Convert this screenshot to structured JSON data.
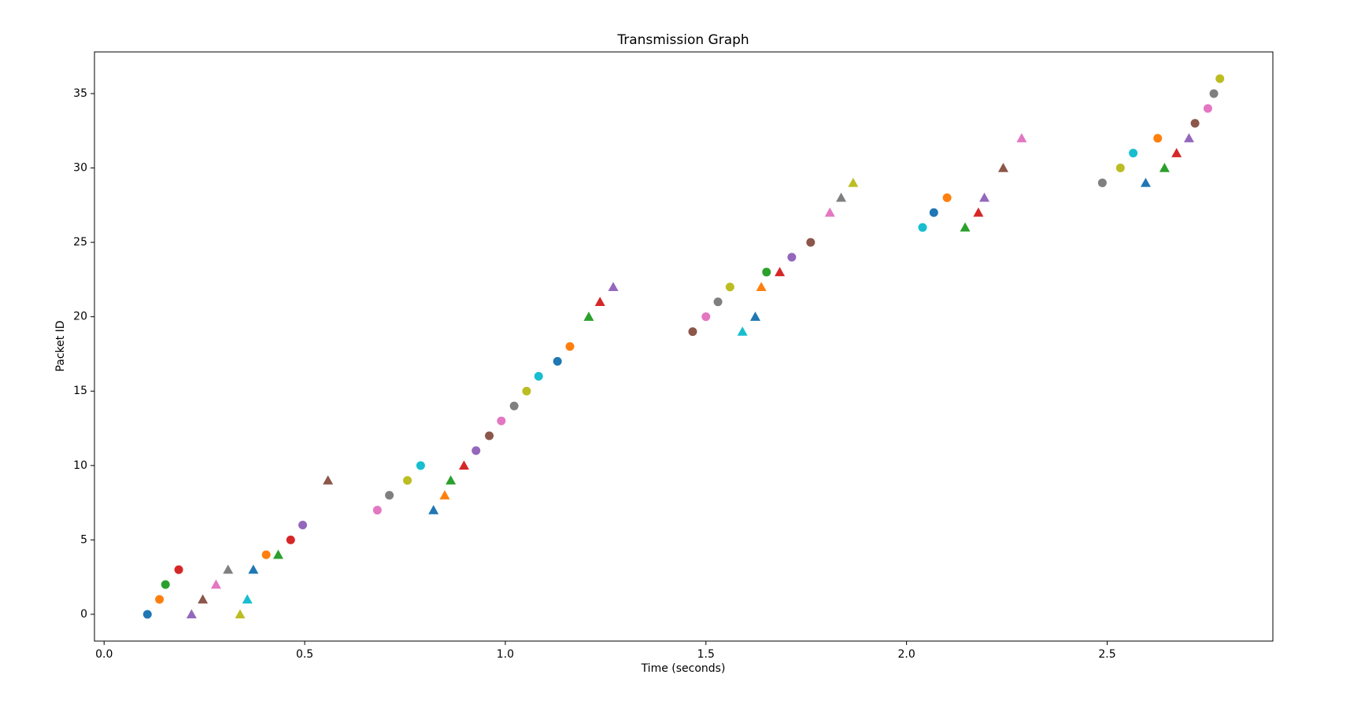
{
  "chart_data": {
    "type": "scatter",
    "title": "Transmission Graph",
    "x_label": "Time (seconds)",
    "y_label": "Packet ID",
    "x": [
      0.108,
      0.138,
      0.153,
      0.186,
      0.218,
      0.246,
      0.279,
      0.309,
      0.339,
      0.357,
      0.372,
      0.404,
      0.434,
      0.465,
      0.495,
      0.558,
      0.681,
      0.711,
      0.756,
      0.789,
      0.821,
      0.849,
      0.864,
      0.897,
      0.927,
      0.96,
      0.99,
      1.022,
      1.053,
      1.083,
      1.13,
      1.161,
      1.208,
      1.236,
      1.269,
      1.467,
      1.5,
      1.53,
      1.56,
      1.591,
      1.623,
      1.638,
      1.651,
      1.684,
      1.714,
      1.761,
      1.809,
      1.837,
      1.867,
      2.04,
      2.068,
      2.101,
      2.146,
      2.179,
      2.194,
      2.241,
      2.287,
      2.488,
      2.533,
      2.565,
      2.596,
      2.626,
      2.643,
      2.673,
      2.704,
      2.719,
      2.751,
      2.766,
      2.781
    ],
    "values": [
      0,
      1,
      2,
      3,
      0,
      1,
      2,
      3,
      0,
      1,
      3,
      4,
      4,
      5,
      6,
      9,
      7,
      8,
      9,
      10,
      7,
      8,
      9,
      10,
      11,
      12,
      13,
      14,
      15,
      16,
      17,
      18,
      20,
      21,
      22,
      19,
      20,
      21,
      22,
      19,
      20,
      22,
      23,
      23,
      24,
      25,
      27,
      28,
      29,
      26,
      27,
      28,
      26,
      27,
      28,
      30,
      32,
      29,
      30,
      31,
      29,
      32,
      30,
      31,
      32,
      33,
      34,
      35,
      36
    ],
    "markers": [
      "o",
      "o",
      "o",
      "o",
      "^",
      "^",
      "^",
      "^",
      "^",
      "^",
      "^",
      "o",
      "^",
      "o",
      "o",
      "^",
      "o",
      "o",
      "o",
      "o",
      "^",
      "^",
      "^",
      "^",
      "o",
      "o",
      "o",
      "o",
      "o",
      "o",
      "o",
      "o",
      "^",
      "^",
      "^",
      "o",
      "o",
      "o",
      "o",
      "^",
      "^",
      "^",
      "o",
      "^",
      "o",
      "o",
      "^",
      "^",
      "^",
      "o",
      "o",
      "o",
      "^",
      "^",
      "^",
      "^",
      "^",
      "o",
      "o",
      "o",
      "^",
      "o",
      "^",
      "^",
      "^",
      "o",
      "o",
      "o",
      "o"
    ],
    "color_cycle": [
      "#1f77b4",
      "#ff7f0e",
      "#2ca02c",
      "#d62728",
      "#9467bd",
      "#8c564b",
      "#e377c2",
      "#7f7f7f",
      "#bcbd22",
      "#17becf"
    ],
    "xlim": [
      -0.024,
      2.913
    ],
    "ylim": [
      -1.8,
      37.8
    ],
    "xticks": [
      {
        "value": 0,
        "label": "0.0"
      },
      0.5,
      {
        "value": 1,
        "label": "1.0"
      },
      1.5,
      {
        "value": 2,
        "label": "2.0"
      },
      2.5
    ],
    "yticks": [
      0,
      5,
      10,
      15,
      20,
      25,
      30,
      35
    ]
  }
}
